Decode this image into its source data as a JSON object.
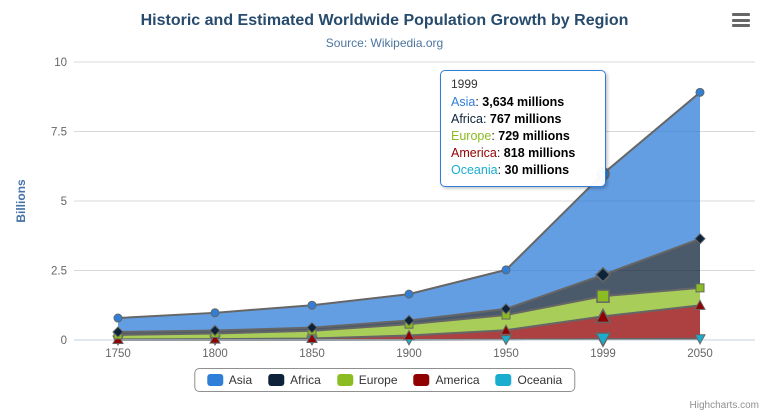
{
  "header": {
    "title": "Historic and Estimated Worldwide Population Growth by Region",
    "subtitle": "Source: Wikipedia.org"
  },
  "menu": {
    "icon": "hamburger-icon"
  },
  "credits": {
    "label": "Highcharts.com"
  },
  "chart_data": {
    "type": "area",
    "stacking": "normal",
    "title": "Historic and Estimated Worldwide Population Growth by Region",
    "subtitle": "Source: Wikipedia.org",
    "categories": [
      "1750",
      "1800",
      "1850",
      "1900",
      "1950",
      "1999",
      "2050"
    ],
    "xlabel": "",
    "ylabel": "Billions",
    "ylim": [
      0,
      10
    ],
    "yticks": [
      "0",
      "2.5",
      "5",
      "7.5",
      "10"
    ],
    "unit_note": "series values are in millions; axis in billions",
    "grid": "horizontal",
    "legend_position": "bottom",
    "series": [
      {
        "name": "Asia",
        "color": "#2f7ed8",
        "marker": "circle",
        "values": [
          502,
          635,
          809,
          947,
          1402,
          3634,
          5268
        ]
      },
      {
        "name": "Africa",
        "color": "#0d233a",
        "marker": "diamond",
        "values": [
          106,
          107,
          111,
          133,
          221,
          767,
          1766
        ]
      },
      {
        "name": "Europe",
        "color": "#8bbc21",
        "marker": "square",
        "values": [
          163,
          203,
          276,
          408,
          547,
          729,
          628
        ]
      },
      {
        "name": "America",
        "color": "#910000",
        "marker": "triangle",
        "values": [
          18,
          31,
          54,
          156,
          339,
          818,
          1201
        ]
      },
      {
        "name": "Oceania",
        "color": "#1aadce",
        "marker": "triangle-down",
        "values": [
          2,
          2,
          2,
          6,
          13,
          30,
          46
        ]
      }
    ],
    "hover_index": 5,
    "tooltip": {
      "header": "1999",
      "rows": [
        {
          "name": "Asia",
          "value": "3,634 millions"
        },
        {
          "name": "Africa",
          "value": "767 millions"
        },
        {
          "name": "Europe",
          "value": "729 millions"
        },
        {
          "name": "America",
          "value": "818 millions"
        },
        {
          "name": "Oceania",
          "value": "30 millions"
        }
      ]
    },
    "colors": {
      "title": "#274b6d",
      "subtitle": "#4d759e",
      "axis_labels": "#666666",
      "yaxis_title": "#4572a7",
      "gridline": "#d8d8d8",
      "axis_line": "#c0d0e0",
      "series_line": "#666666",
      "legend_border": "#909090",
      "tooltip_border": "#2f7ed8",
      "fill_opacity": 0.75
    }
  }
}
